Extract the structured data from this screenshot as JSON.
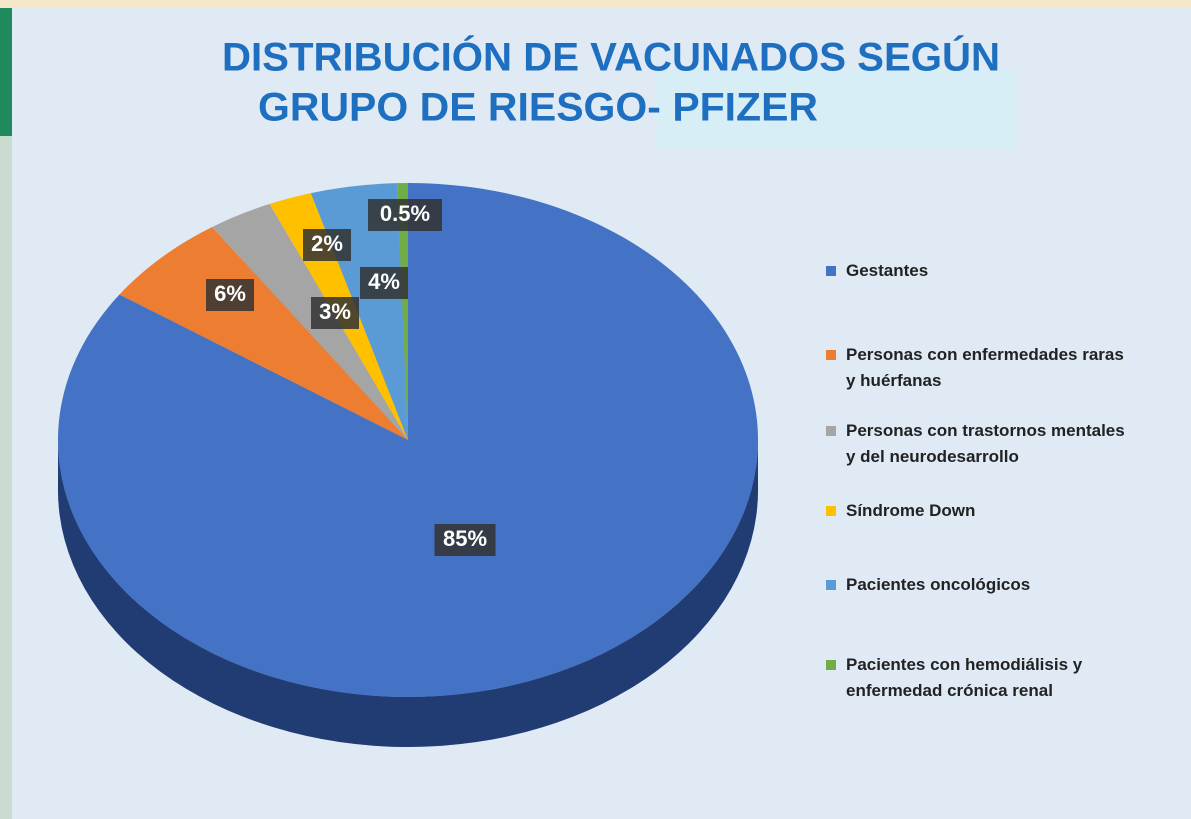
{
  "chart_data": {
    "type": "pie",
    "title": [
      "DISTRIBUCIÓN DE VACUNADOS SEGÚN",
      "GRUPO DE RIESGO- PFIZER"
    ],
    "categories": [
      "Gestantes",
      "Personas con enfermedades raras y huérfanas",
      "Personas con trastornos mentales y del neurodesarrollo",
      "Síndrome Down",
      "Pacientes oncológicos",
      "Pacientes con hemodiálisis y enfermedad crónica renal"
    ],
    "values": [
      85,
      6,
      3,
      2,
      4,
      0.5
    ],
    "value_labels": [
      "85%",
      "6%",
      "3%",
      "2%",
      "4%",
      "0.5%"
    ],
    "colors": [
      "#4472c4",
      "#ed7d31",
      "#a5a5a5",
      "#ffc000",
      "#5b9bd5",
      "#70ad47"
    ],
    "legend": "right"
  }
}
